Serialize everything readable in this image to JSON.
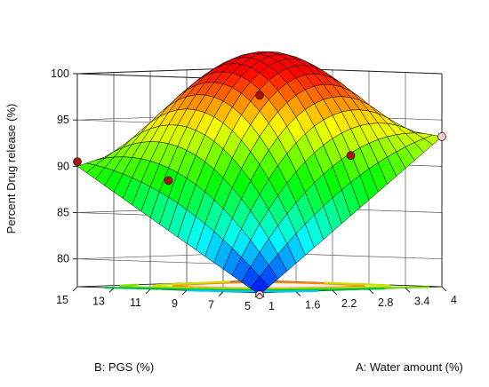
{
  "chart_data": {
    "type": "surface",
    "title": "",
    "xlabel": "A: Water amount  (%)",
    "ylabel": "B: PGS (%)",
    "zlabel": "Percent Drug release  (%)",
    "x_ticks": [
      "1",
      "1.6",
      "2.2",
      "2.8",
      "3.4",
      "4"
    ],
    "y_ticks": [
      "5",
      "7",
      "9",
      "11",
      "13",
      "15"
    ],
    "z_ticks": [
      "80",
      "85",
      "90",
      "95",
      "100"
    ],
    "xlim": [
      1,
      4
    ],
    "ylim": [
      5,
      15
    ],
    "zlim": [
      77,
      100
    ],
    "colormap": [
      "#0000ff",
      "#00ffff",
      "#00ff00",
      "#ffff00",
      "#ff0000"
    ],
    "surface_corners": [
      {
        "x": 1,
        "y": 5,
        "z": 76.8
      },
      {
        "x": 4,
        "y": 5,
        "z": 93.2
      },
      {
        "x": 1,
        "y": 15,
        "z": 90.0
      },
      {
        "x": 4,
        "y": 15,
        "z": 96.0
      }
    ],
    "surface_peak": {
      "x": 2.5,
      "y": 12.5,
      "z": 100.3
    },
    "design_points": [
      {
        "x": 1,
        "y": 5,
        "z": 76.8,
        "color": "#f5d0c8"
      },
      {
        "x": 4,
        "y": 5,
        "z": 93.2,
        "color": "#f5d0c8"
      },
      {
        "x": 1,
        "y": 15,
        "z": 90.5,
        "color": "#b01010"
      },
      {
        "x": 4,
        "y": 15,
        "z": 97.0,
        "color": "#b01010"
      },
      {
        "x": 2.5,
        "y": 5,
        "z": 91.5,
        "color": "#b01010"
      },
      {
        "x": 1,
        "y": 10,
        "z": 88.8,
        "color": "#b01010"
      }
    ],
    "contour_colors": [
      "#ff7f00",
      "#d0e000",
      "#80e000",
      "#00c040",
      "#00c8ff"
    ]
  }
}
